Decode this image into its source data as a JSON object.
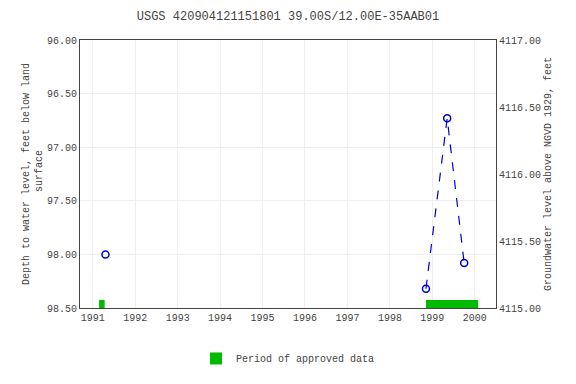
{
  "chart_data": {
    "type": "line",
    "title": "USGS 420904121151801 39.00S/12.00E-35AAB01",
    "ylabel": "Depth to water level, feet below land\n surface",
    "y2label": "Groundwater level above NGVD 1929, feet",
    "xlim": [
      1990.7,
      2000.5
    ],
    "xticks": [
      1991,
      1992,
      1993,
      1994,
      1995,
      1996,
      1997,
      1998,
      1999,
      2000
    ],
    "ylim": [
      98.5,
      96.0
    ],
    "yticks": [
      {
        "value": 96.0,
        "label": "96.00"
      },
      {
        "value": 96.5,
        "label": "96.50"
      },
      {
        "value": 97.0,
        "label": "97.00"
      },
      {
        "value": 97.5,
        "label": "97.50"
      },
      {
        "value": 98.0,
        "label": "98.00"
      },
      {
        "value": 98.5,
        "label": "98.50"
      }
    ],
    "y2lim": [
      4115.0,
      4117.0
    ],
    "y2ticks": [
      {
        "value": 4115.0,
        "label": "4115.00"
      },
      {
        "value": 4115.5,
        "label": "4115.50"
      },
      {
        "value": 4116.0,
        "label": "4116.00"
      },
      {
        "value": 4116.5,
        "label": "4116.50"
      },
      {
        "value": 4117.0,
        "label": "4117.00"
      }
    ],
    "grid": true,
    "legend": "bottom",
    "series": [
      {
        "x": [
          1991.3
        ],
        "values": [
          98.0
        ],
        "color": "#0000cc",
        "marker": "circle-open",
        "line_style": "none"
      },
      {
        "x": [
          1998.85,
          1999.35,
          1999.75
        ],
        "values": [
          98.32,
          96.73,
          98.08
        ],
        "color": "#0000cc",
        "marker": "circle-open",
        "line_style": "dashed"
      }
    ],
    "approved_periods": {
      "name": "Period of approved data",
      "color": "#00bb00",
      "ranges": [
        [
          1991.15,
          1991.28
        ],
        [
          1998.85,
          2000.08
        ]
      ]
    }
  }
}
